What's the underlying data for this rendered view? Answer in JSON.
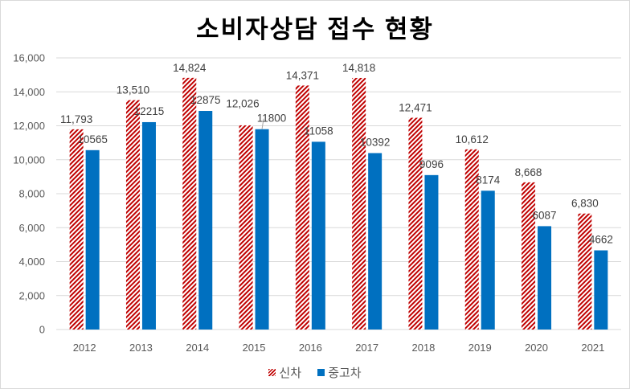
{
  "chart_data": {
    "type": "bar",
    "title": "소비자상담 접수 현황",
    "categories": [
      "2012",
      "2013",
      "2014",
      "2015",
      "2016",
      "2017",
      "2018",
      "2019",
      "2020",
      "2021"
    ],
    "series": [
      {
        "name": "신차",
        "values": [
          11793,
          13510,
          14824,
          12026,
          14371,
          14818,
          12471,
          10612,
          8668,
          6830
        ],
        "color": "#c00000",
        "pattern": "diagonal-hatch",
        "label_format": "comma"
      },
      {
        "name": "중고차",
        "values": [
          10565,
          12215,
          12875,
          11800,
          11058,
          10392,
          9096,
          8174,
          6087,
          4662
        ],
        "color": "#0070c0",
        "pattern": "solid",
        "label_format": "plain"
      }
    ],
    "ylim": [
      0,
      16000
    ],
    "yticks": [
      "0",
      "2,000",
      "4,000",
      "6,000",
      "8,000",
      "10,000",
      "12,000",
      "14,000",
      "16,000"
    ],
    "grid": true,
    "legend": "bottom"
  }
}
